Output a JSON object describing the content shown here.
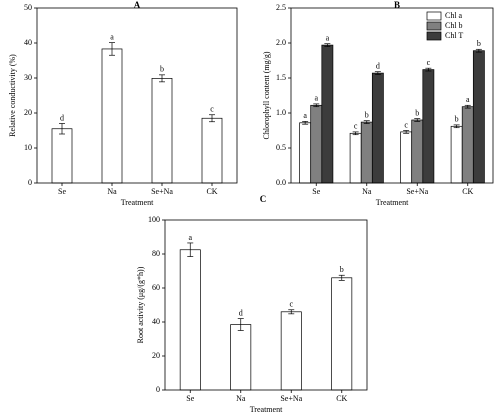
{
  "chart_data": [
    {
      "type": "bar",
      "title": "A",
      "xlabel": "Treatment",
      "ylabel": "Relative conductivity (%)",
      "categories": [
        "Se",
        "Na",
        "Se+Na",
        "CK"
      ],
      "values": [
        15.5,
        38.3,
        29.9,
        18.5
      ],
      "errors": [
        1.5,
        1.8,
        1.0,
        1.0
      ],
      "letters": [
        "d",
        "a",
        "b",
        "c"
      ],
      "color": "#ffffff",
      "ylim": [
        0,
        50
      ],
      "yticks": [
        0,
        10,
        20,
        30,
        40,
        50
      ]
    },
    {
      "type": "grouped-bar",
      "title": "B",
      "xlabel": "Treatment",
      "ylabel": "Chlorophyll content (mg/g)",
      "categories": [
        "Se",
        "Na",
        "Se+Na",
        "CK"
      ],
      "series": [
        {
          "name": "Chl a",
          "color": "#ffffff",
          "values": [
            0.86,
            0.71,
            0.73,
            0.81
          ],
          "errors": [
            0.02,
            0.02,
            0.02,
            0.02
          ],
          "letters": [
            "a",
            "c",
            "c",
            "b"
          ]
        },
        {
          "name": "Chl b",
          "color": "#808080",
          "values": [
            1.11,
            0.87,
            0.9,
            1.09
          ],
          "errors": [
            0.02,
            0.02,
            0.02,
            0.02
          ],
          "letters": [
            "a",
            "b",
            "b",
            "a"
          ]
        },
        {
          "name": "Chl T",
          "color": "#3c3c3c",
          "values": [
            1.97,
            1.57,
            1.62,
            1.89
          ],
          "errors": [
            0.02,
            0.02,
            0.02,
            0.02
          ],
          "letters": [
            "a",
            "d",
            "c",
            "b"
          ]
        }
      ],
      "legend": "upper right",
      "ylim": [
        0,
        2.5
      ],
      "yticks": [
        {
          "value": 0,
          "label": "0.0"
        },
        0.5,
        {
          "value": 1,
          "label": "1.0"
        },
        1.5,
        {
          "value": 2,
          "label": "2.0"
        },
        2.5
      ]
    },
    {
      "type": "bar",
      "title": "C",
      "xlabel": "Treatment",
      "ylabel": "Root activity (μg/(g*h))",
      "categories": [
        "Se",
        "Na",
        "Se+Na",
        "CK"
      ],
      "values": [
        82.5,
        38.5,
        46,
        66
      ],
      "errors": [
        4,
        3.5,
        1.2,
        1.5
      ],
      "letters": [
        "a",
        "d",
        "c",
        "b"
      ],
      "color": "#ffffff",
      "ylim": [
        0,
        100
      ],
      "yticks": [
        0,
        20,
        40,
        60,
        80,
        100
      ]
    }
  ]
}
